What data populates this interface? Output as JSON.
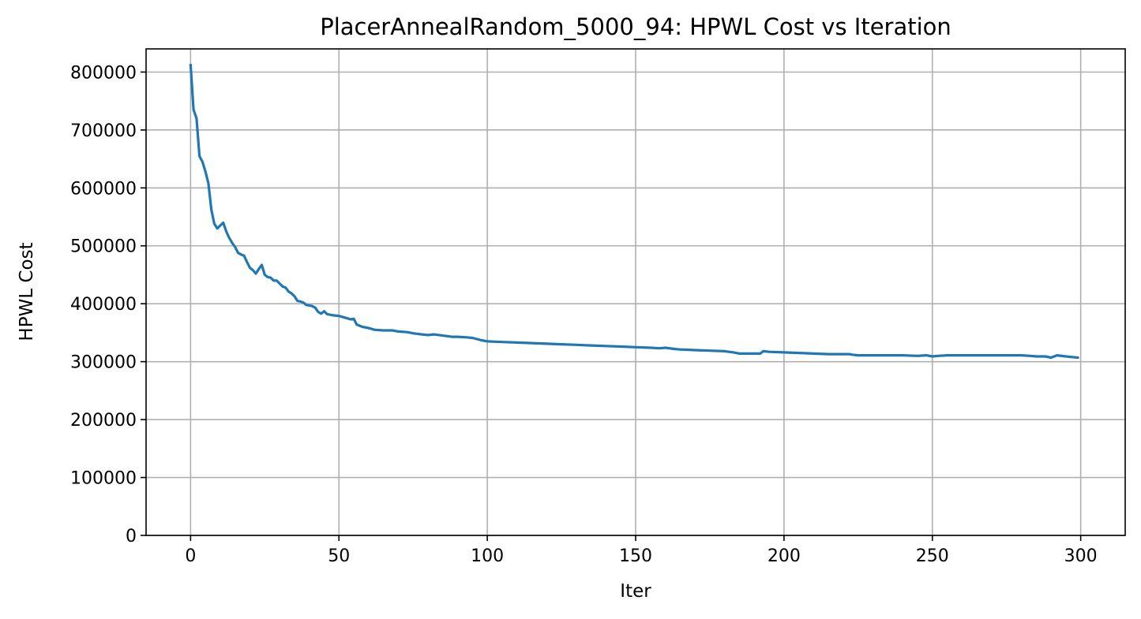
{
  "chart_data": {
    "type": "line",
    "title": "PlacerAnnealRandom_5000_94: HPWL Cost vs Iteration",
    "xlabel": "Iter",
    "ylabel": "HPWL Cost",
    "xlim": [
      -15,
      315
    ],
    "ylim": [
      0,
      840000
    ],
    "xticks": [
      0,
      50,
      100,
      150,
      200,
      250,
      300
    ],
    "yticks": [
      0,
      100000,
      200000,
      300000,
      400000,
      500000,
      600000,
      700000,
      800000
    ],
    "xtick_labels": [
      "0",
      "50",
      "100",
      "150",
      "200",
      "250",
      "300"
    ],
    "ytick_labels": [
      "0",
      "100000",
      "200000",
      "300000",
      "400000",
      "500000",
      "600000",
      "700000",
      "800000"
    ],
    "grid": true,
    "series": [
      {
        "color": "#1f77b4",
        "x": [
          0,
          1,
          2,
          3,
          4,
          5,
          6,
          7,
          8,
          9,
          10,
          11,
          12,
          13,
          14,
          15,
          16,
          17,
          18,
          19,
          20,
          21,
          22,
          23,
          24,
          25,
          26,
          27,
          28,
          29,
          30,
          31,
          32,
          33,
          34,
          35,
          36,
          37,
          38,
          39,
          40,
          41,
          42,
          43,
          44,
          45,
          46,
          47,
          48,
          50,
          52,
          54,
          55,
          56,
          58,
          60,
          62,
          65,
          68,
          70,
          73,
          75,
          78,
          80,
          82,
          85,
          88,
          90,
          93,
          95,
          98,
          100,
          105,
          110,
          115,
          120,
          125,
          130,
          135,
          140,
          145,
          150,
          155,
          158,
          160,
          163,
          165,
          170,
          175,
          180,
          183,
          185,
          188,
          190,
          192,
          193,
          195,
          200,
          205,
          210,
          215,
          220,
          222,
          223,
          225,
          230,
          235,
          240,
          245,
          248,
          250,
          252,
          255,
          260,
          265,
          270,
          275,
          280,
          283,
          285,
          288,
          290,
          292,
          295,
          299
        ],
        "y": [
          812000,
          735000,
          720000,
          655000,
          645000,
          628000,
          608000,
          562000,
          538000,
          530000,
          535000,
          540000,
          525000,
          514000,
          505000,
          498000,
          488000,
          485000,
          483000,
          472000,
          462000,
          458000,
          452000,
          460000,
          467000,
          450000,
          446000,
          445000,
          440000,
          440000,
          435000,
          430000,
          428000,
          421000,
          418000,
          413000,
          405000,
          404000,
          402000,
          398000,
          397000,
          396000,
          393000,
          386000,
          383000,
          387000,
          382000,
          381000,
          380000,
          379000,
          376000,
          373000,
          374000,
          364000,
          360000,
          358000,
          355000,
          354000,
          354000,
          352000,
          351000,
          349000,
          347000,
          346000,
          347000,
          345000,
          343000,
          343000,
          342000,
          341000,
          337000,
          335000,
          334000,
          333000,
          332000,
          331000,
          330000,
          329000,
          328000,
          327000,
          326000,
          325000,
          324000,
          323000,
          324000,
          322000,
          321000,
          320000,
          319000,
          318000,
          316000,
          314000,
          314000,
          314000,
          314000,
          318000,
          317000,
          316000,
          315000,
          314000,
          313000,
          313000,
          313000,
          312000,
          311000,
          311000,
          311000,
          311000,
          310000,
          311000,
          309000,
          310000,
          311000,
          311000,
          311000,
          311000,
          311000,
          311000,
          310000,
          309000,
          309000,
          307000,
          311000,
          309000,
          307000
        ]
      }
    ]
  }
}
